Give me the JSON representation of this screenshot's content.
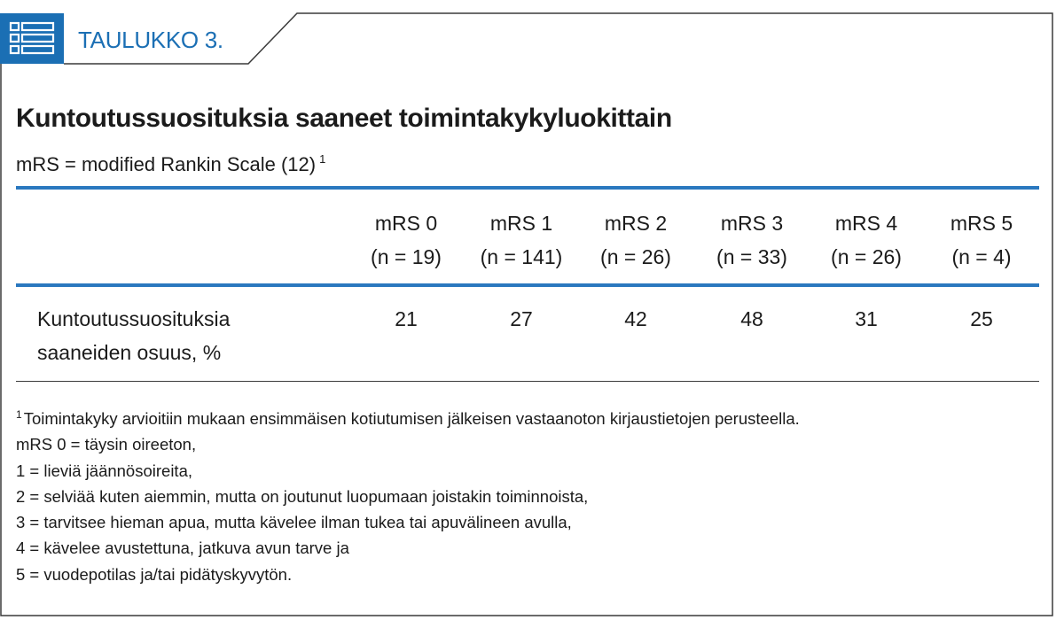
{
  "header": {
    "label": "TAULUKKO 3.",
    "icon": "table-icon"
  },
  "title": "Kuntoutussuosituksia saaneet toimintakykyluokittain",
  "subtitle": {
    "text": "mRS = modified Rankin Scale (12)",
    "footnote_ref": "1"
  },
  "table": {
    "columns": [
      {
        "label": "mRS 0",
        "n": "(n = 19)"
      },
      {
        "label": "mRS 1",
        "n": "(n = 141)"
      },
      {
        "label": "mRS 2",
        "n": "(n = 26)"
      },
      {
        "label": "mRS 3",
        "n": "(n = 33)"
      },
      {
        "label": "mRS 4",
        "n": "(n = 26)"
      },
      {
        "label": "mRS 5",
        "n": "(n = 4)"
      }
    ],
    "rows": [
      {
        "label_lines": [
          "Kuntoutussuosituksia",
          "saaneiden osuus, %"
        ],
        "values": [
          21,
          27,
          42,
          48,
          31,
          25
        ]
      }
    ]
  },
  "footnotes": {
    "marker": "1",
    "first_line": "Toimintakyky arvioitiin mukaan ensimmäisen kotiutumisen jälkeisen vastaanoton kirjaustietojen perusteella.",
    "lines": [
      "mRS 0 = täysin oireeton,",
      "1 = lieviä jäännösoireita,",
      "2 = selviää kuten aiemmin, mutta on joutunut luopumaan joistakin toiminnoista,",
      "3 = tarvitsee hieman apua, mutta kävelee ilman tukea tai apuvälineen avulla,",
      "4 = kävelee avustettuna, jatkuva avun tarve ja",
      "5 = vuodepotilas ja/tai pidätyskyvytön."
    ]
  },
  "colors": {
    "accent": "#1b6fb4",
    "rule": "#2a78bf",
    "border": "#3a3a3a",
    "text": "#1b1b1b"
  }
}
